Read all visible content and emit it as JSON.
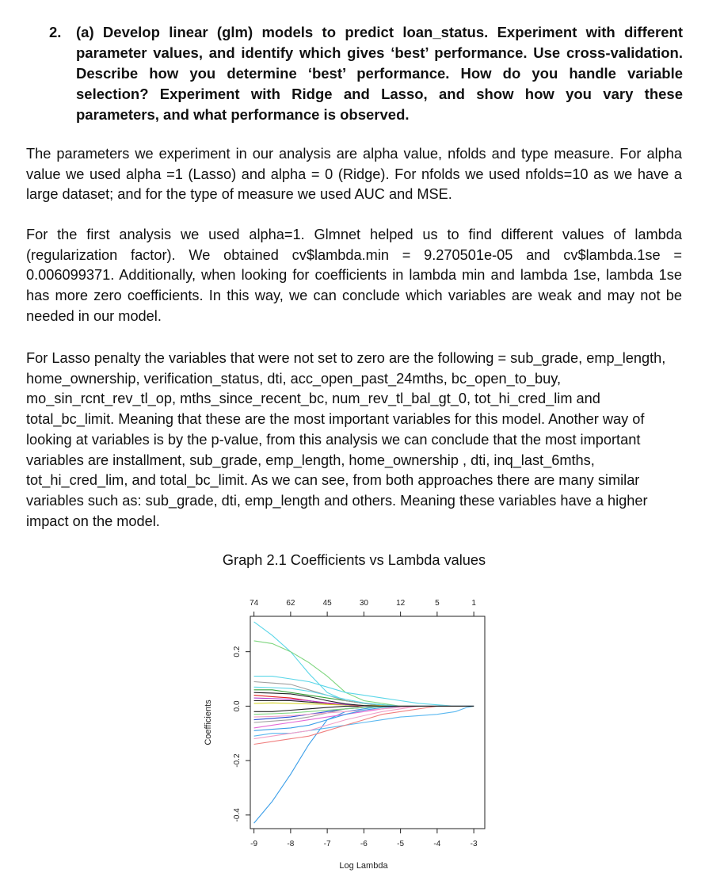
{
  "question": {
    "number": "2.",
    "text": "(a) Develop linear (glm) models to predict loan_status. Experiment with different parameter values, and identify which gives ‘best’ performance. Use cross-validation. Describe how you determine ‘best’ performance. How do you handle variable selection? Experiment with Ridge and Lasso, and show how you vary these parameters, and what performance is observed."
  },
  "paragraphs": [
    "The parameters we experiment in our analysis are alpha value, nfolds and type measure. For alpha value we used alpha =1 (Lasso) and alpha = 0 (Ridge). For nfolds we used nfolds=10 as we have a large dataset; and for the type of measure we used AUC and MSE.",
    "For the first analysis we used alpha=1. Glmnet helped us to find different values of lambda (regularization factor). We obtained cv$lambda.min = 9.270501e-05 and cv$lambda.1se = 0.006099371. Additionally, when looking for coefficients in lambda min and lambda 1se, lambda 1se has more zero coefficients. In this way, we can conclude which variables are weak and may not be needed in our model.",
    "For Lasso penalty the variables that were not set to zero are the following = sub_grade, emp_length, home_ownership, verification_status, dti, acc_open_past_24mths, bc_open_to_buy, mo_sin_rcnt_rev_tl_op, mths_since_recent_bc, num_rev_tl_bal_gt_0, tot_hi_cred_lim and total_bc_limit. Meaning that these are the most important variables for this model. Another way of looking at variables is by the p-value, from this analysis we can conclude that the most important variables are installment, sub_grade, emp_length, home_ownership , dti, inq_last_6mths, tot_hi_cred_lim, and total_bc_limit. As we can see, from both approaches there are many similar variables such as: sub_grade, dti, emp_length and others. Meaning these variables have a higher impact on the model."
  ],
  "graph_caption": "Graph 2.1 Coefficients vs Lambda values",
  "chart_data": {
    "type": "line",
    "xlabel": "Log Lambda",
    "ylabel": "Coefficients",
    "xlim": [
      -9.1,
      -2.7
    ],
    "ylim": [
      -0.45,
      0.33
    ],
    "x_ticks": [
      "-9",
      "-8",
      "-7",
      "-6",
      "-5",
      "-4",
      "-3"
    ],
    "y_ticks": [
      "-0.4",
      "-0.2",
      "0.0",
      "0.2"
    ],
    "top_axis": {
      "positions": [
        -9,
        -8,
        -7,
        -6,
        -5,
        -4,
        -3
      ],
      "labels": [
        "74",
        "62",
        "45",
        "30",
        "12",
        "5",
        "1"
      ]
    },
    "x": [
      -9.0,
      -8.5,
      -8.0,
      -7.5,
      -7.0,
      -6.5,
      -6.0,
      -5.5,
      -5.0,
      -4.5,
      -4.0,
      -3.5,
      -3.2,
      -3.0
    ],
    "series": [
      {
        "color": "#3b9ee8",
        "values": [
          -0.43,
          -0.35,
          -0.25,
          -0.14,
          -0.05,
          -0.02,
          -0.01,
          0,
          0,
          0,
          0,
          0,
          0,
          0
        ]
      },
      {
        "color": "#5bd6e8",
        "values": [
          0.31,
          0.26,
          0.2,
          0.12,
          0.05,
          0.02,
          0.01,
          0,
          0,
          0,
          0,
          0,
          0,
          0
        ]
      },
      {
        "color": "#7fd67f",
        "values": [
          0.24,
          0.23,
          0.2,
          0.16,
          0.11,
          0.05,
          0.02,
          0.01,
          0,
          0,
          0,
          0,
          0,
          0
        ]
      },
      {
        "color": "#5bd6e8",
        "values": [
          0.11,
          0.11,
          0.1,
          0.09,
          0.07,
          0.05,
          0.04,
          0.03,
          0.02,
          0.01,
          0.005,
          0,
          0,
          0
        ]
      },
      {
        "color": "#5bb8f0",
        "values": [
          -0.11,
          -0.1,
          -0.1,
          -0.09,
          -0.08,
          -0.07,
          -0.06,
          -0.05,
          -0.04,
          -0.035,
          -0.03,
          -0.02,
          -0.005,
          0
        ]
      },
      {
        "color": "#f08080",
        "values": [
          -0.14,
          -0.13,
          -0.12,
          -0.11,
          -0.09,
          -0.07,
          -0.05,
          -0.03,
          -0.02,
          -0.01,
          0,
          0,
          0,
          0
        ]
      },
      {
        "color": "#e36ad6",
        "values": [
          -0.08,
          -0.07,
          -0.06,
          -0.05,
          -0.04,
          -0.03,
          -0.02,
          -0.01,
          0,
          0,
          0,
          0,
          0,
          0
        ]
      },
      {
        "color": "#3aa33a",
        "values": [
          0.06,
          0.06,
          0.05,
          0.04,
          0.03,
          0.02,
          0.01,
          0.005,
          0,
          0,
          0,
          0,
          0,
          0
        ]
      },
      {
        "color": "#222222",
        "values": [
          0.02,
          0.02,
          0.02,
          0.015,
          0.01,
          0.005,
          0,
          0,
          0,
          0,
          0,
          0,
          0,
          0
        ]
      },
      {
        "color": "#222222",
        "values": [
          -0.02,
          -0.02,
          -0.015,
          -0.01,
          -0.005,
          0,
          0,
          0,
          0,
          0,
          0,
          0,
          0,
          0
        ]
      },
      {
        "color": "#e22020",
        "values": [
          0.04,
          0.035,
          0.03,
          0.02,
          0.01,
          0.005,
          0,
          0,
          0,
          0,
          0,
          0,
          0,
          0
        ]
      },
      {
        "color": "#2a4fd6",
        "values": [
          -0.05,
          -0.045,
          -0.04,
          -0.03,
          -0.02,
          -0.01,
          -0.005,
          0,
          0,
          0,
          0,
          0,
          0,
          0
        ]
      },
      {
        "color": "#a0a0a0",
        "values": [
          0.09,
          0.085,
          0.08,
          0.06,
          0.04,
          0.02,
          0.01,
          0,
          0,
          0,
          0,
          0,
          0,
          0
        ]
      },
      {
        "color": "#a0a0a0",
        "values": [
          -0.06,
          -0.055,
          -0.05,
          -0.04,
          -0.025,
          -0.01,
          0,
          0,
          0,
          0,
          0,
          0,
          0,
          0
        ]
      },
      {
        "color": "#d6d630",
        "values": [
          0.01,
          0.012,
          0.01,
          0.008,
          0.006,
          0.004,
          0.003,
          0.002,
          0.001,
          0,
          0,
          0,
          0,
          0
        ]
      },
      {
        "color": "#f2a0c8",
        "values": [
          -0.12,
          -0.11,
          -0.1,
          -0.09,
          -0.07,
          -0.05,
          -0.035,
          -0.02,
          -0.01,
          0,
          0,
          0,
          0,
          0
        ]
      },
      {
        "color": "#f2a0c8",
        "values": [
          -0.04,
          -0.038,
          -0.035,
          -0.03,
          -0.025,
          -0.02,
          -0.015,
          -0.01,
          -0.005,
          0,
          0,
          0,
          0,
          0
        ]
      },
      {
        "color": "#5bd6e8",
        "values": [
          0.07,
          0.068,
          0.065,
          0.055,
          0.04,
          0.025,
          0.012,
          0.005,
          0,
          0,
          0,
          0,
          0,
          0
        ]
      },
      {
        "color": "#b040d0",
        "values": [
          0.03,
          0.028,
          0.025,
          0.02,
          0.012,
          0.006,
          0.002,
          0,
          0,
          0,
          0,
          0,
          0,
          0
        ]
      },
      {
        "color": "#3b9ee8",
        "values": [
          -0.09,
          -0.085,
          -0.08,
          -0.07,
          -0.05,
          -0.03,
          -0.015,
          -0.005,
          0,
          0,
          0,
          0,
          0,
          0
        ]
      },
      {
        "color": "#7fd67f",
        "values": [
          -0.03,
          -0.028,
          -0.025,
          -0.02,
          -0.015,
          -0.01,
          -0.005,
          -0.002,
          0,
          0,
          0,
          0,
          0,
          0
        ]
      },
      {
        "color": "#222222",
        "values": [
          0.05,
          0.048,
          0.045,
          0.035,
          0.02,
          0.008,
          0.002,
          0,
          0,
          0,
          0,
          0,
          0,
          0
        ]
      }
    ],
    "grid": false
  }
}
